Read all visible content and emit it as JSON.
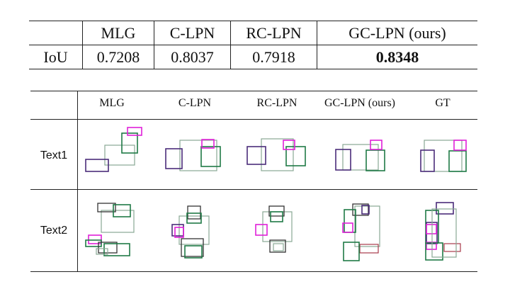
{
  "iou_table": {
    "headers": [
      "",
      "MLG",
      "C-LPN",
      "RC-LPN",
      "GC-LPN (ours)"
    ],
    "row_label": "IoU",
    "values": [
      "0.7208",
      "0.8037",
      "0.7918",
      "0.8348"
    ],
    "best_index": 3
  },
  "visual_grid": {
    "columns": [
      "MLG",
      "C-LPN",
      "RC-LPN",
      "GC-LPN (ours)",
      "GT"
    ],
    "rows": [
      "Text1",
      "Text2"
    ]
  },
  "caption_fragment": "",
  "colors": {
    "purple": "#4b2c7a",
    "green": "#1f7a46",
    "magenta": "#e020d8",
    "gray_green": "#88a894",
    "red": "#a83a4a"
  }
}
